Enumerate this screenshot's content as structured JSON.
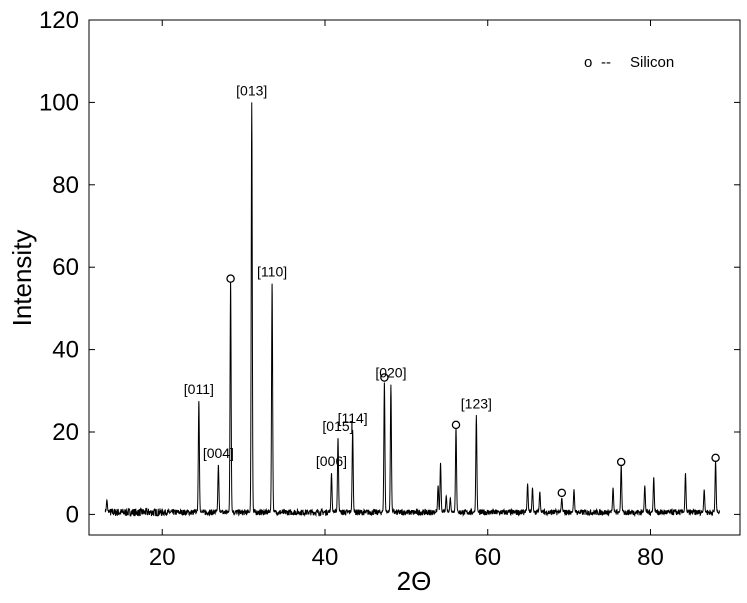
{
  "chart_data": {
    "type": "line",
    "title": "",
    "xlabel": "2Θ",
    "ylabel": "Intensity",
    "xlim": [
      11,
      91
    ],
    "ylim": [
      -5,
      120
    ],
    "xticks": [
      20,
      40,
      60,
      80
    ],
    "yticks": [
      0,
      20,
      40,
      60,
      80,
      100,
      120
    ],
    "grid": false,
    "legend": {
      "position": "top-right",
      "marker_label": "o",
      "line_label": "--",
      "text": "Silicon"
    },
    "baseline": {
      "x_start": 13,
      "x_end": 88.5,
      "value": 0.5
    },
    "peaks": [
      {
        "x": 13.2,
        "y": 3.5
      },
      {
        "x": 24.5,
        "y": 27.5,
        "label": "[011]"
      },
      {
        "x": 26.9,
        "y": 12,
        "label": "[004]"
      },
      {
        "x": 28.4,
        "y": 56.5
      },
      {
        "x": 31.0,
        "y": 100,
        "label": "[013]"
      },
      {
        "x": 33.5,
        "y": 56,
        "label": "[110]"
      },
      {
        "x": 40.8,
        "y": 10,
        "label": "[006]"
      },
      {
        "x": 41.6,
        "y": 18.5,
        "label": "[015]"
      },
      {
        "x": 43.4,
        "y": 20.5,
        "label": "[114]"
      },
      {
        "x": 47.3,
        "y": 32
      },
      {
        "x": 48.1,
        "y": 31.5,
        "label": "[020]"
      },
      {
        "x": 53.9,
        "y": 7
      },
      {
        "x": 54.2,
        "y": 12.5
      },
      {
        "x": 54.9,
        "y": 4.5
      },
      {
        "x": 55.4,
        "y": 4
      },
      {
        "x": 56.1,
        "y": 21
      },
      {
        "x": 58.6,
        "y": 24,
        "label": "[123]"
      },
      {
        "x": 64.9,
        "y": 7.5
      },
      {
        "x": 65.5,
        "y": 6.5
      },
      {
        "x": 66.4,
        "y": 5.5
      },
      {
        "x": 69.1,
        "y": 4
      },
      {
        "x": 70.6,
        "y": 6
      },
      {
        "x": 75.4,
        "y": 6.5
      },
      {
        "x": 76.4,
        "y": 12
      },
      {
        "x": 79.3,
        "y": 7
      },
      {
        "x": 80.4,
        "y": 9
      },
      {
        "x": 84.3,
        "y": 10
      },
      {
        "x": 86.6,
        "y": 6
      },
      {
        "x": 88.0,
        "y": 13
      }
    ],
    "silicon_markers": [
      {
        "x": 28.4,
        "y": 56.5
      },
      {
        "x": 47.3,
        "y": 32.5
      },
      {
        "x": 56.1,
        "y": 21
      },
      {
        "x": 69.1,
        "y": 4.5
      },
      {
        "x": 76.4,
        "y": 12
      },
      {
        "x": 88.0,
        "y": 13
      }
    ]
  }
}
